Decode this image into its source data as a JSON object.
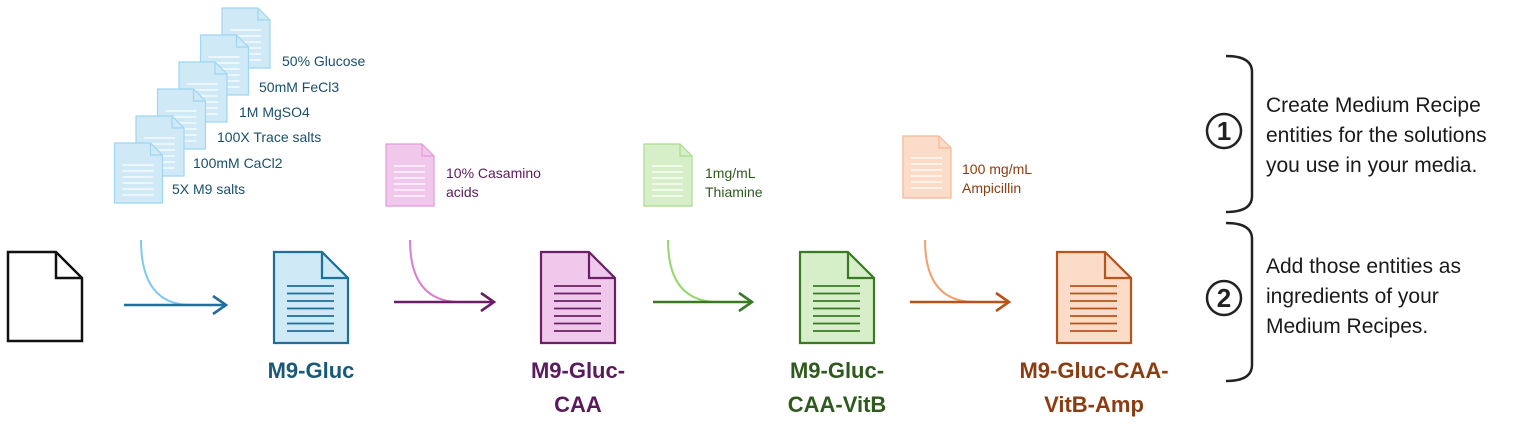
{
  "base_solutions": [
    {
      "label": "50% Glucose"
    },
    {
      "label": "50mM FeCl3"
    },
    {
      "label": "1M MgSO4"
    },
    {
      "label": "100X Trace salts"
    },
    {
      "label": "100mM CaCl2"
    },
    {
      "label": "5X M9 salts"
    }
  ],
  "steps": [
    {
      "solution_lines": [
        "10% Casamino",
        "acids"
      ],
      "product_lines": [
        "M9-Gluc-",
        "CAA"
      ],
      "color": "#5b1a5b",
      "light": "#f0c8ec",
      "lightStroke": "#e29ad8",
      "arrow": "#6a1f66",
      "curve": "#d97fd0"
    },
    {
      "solution_lines": [
        "1mg/mL",
        "Thiamine"
      ],
      "product_lines": [
        "M9-Gluc-",
        "CAA-VitB"
      ],
      "color": "#2f5a1e",
      "light": "#d6efc9",
      "lightStroke": "#a8dc8c",
      "arrow": "#3a7a25",
      "curve": "#93d86f"
    },
    {
      "solution_lines": [
        "100 mg/mL",
        "Ampicillin"
      ],
      "product_lines": [
        "M9-Gluc-CAA-",
        "VitB-Amp"
      ],
      "color": "#8a3d12",
      "light": "#fbdcc8",
      "lightStroke": "#f4b894",
      "arrow": "#b8531c",
      "curve": "#f1a170"
    }
  ],
  "first_product": {
    "lines": [
      "M9-Gluc"
    ],
    "color": "#1a5a78",
    "light": "#cfe9f7",
    "lightStroke": "#8fd0ef",
    "arrow": "#1e6f9a",
    "curve": "#7fcbee"
  },
  "notes": [
    {
      "number": "1",
      "lines": [
        "Create Medium Recipe",
        "entities for the solutions",
        "you use in your media."
      ]
    },
    {
      "number": "2",
      "lines": [
        "Add those entities as",
        "ingredients of your",
        "Medium Recipes."
      ]
    }
  ]
}
